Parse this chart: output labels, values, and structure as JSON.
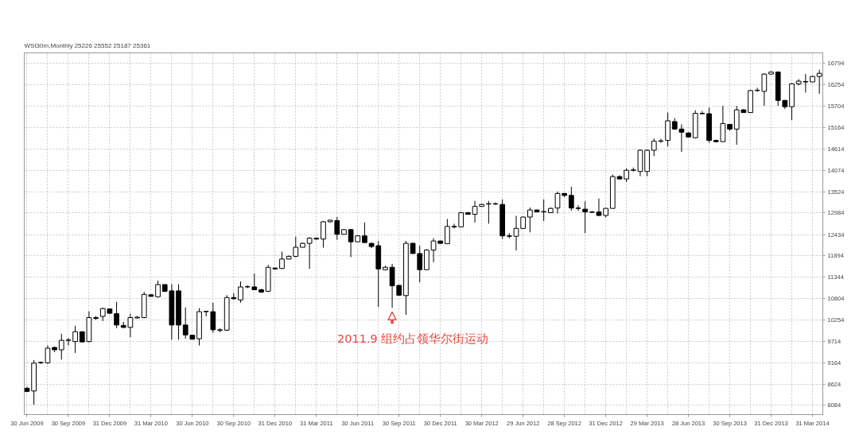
{
  "chart_data": {
    "type": "candlestick",
    "title": "WSt30m,Monthly 25226 25552 25187 25361",
    "categories": [
      "30 Jun 2009",
      null,
      null,
      null,
      null,
      null,
      "30 Sep 2009",
      null,
      null,
      null,
      null,
      null,
      "31 Dec 2009",
      null,
      null,
      null,
      null,
      null,
      "31 Mar 2010",
      null,
      null,
      null,
      null,
      null,
      "30 Jun 2010",
      null,
      null,
      null,
      null,
      null,
      "30 Sep 2010",
      null,
      null,
      null,
      null,
      null,
      "31 Dec 2010",
      null,
      null,
      null,
      null,
      null,
      "31 Mar 2011",
      null,
      null,
      null,
      null,
      null,
      "30 Jun 2011",
      null,
      null,
      null,
      null,
      null,
      "30 Sep 2011",
      null,
      null,
      null,
      null,
      null,
      "30 Dec 2011",
      null,
      null,
      null,
      null,
      null,
      "30 Mar 2012",
      null,
      null,
      null,
      null,
      null,
      "29 Jun 2012",
      null,
      null,
      null,
      null,
      null,
      "28 Sep 2012",
      null,
      null,
      null,
      null,
      null,
      "31 Dec 2012",
      null,
      null,
      null,
      null,
      null,
      "29 Mar 2013",
      null,
      null,
      null,
      null,
      null,
      "28 Jun 2013",
      null,
      null,
      null,
      null,
      null,
      "30 Sep 2013",
      null,
      null,
      null,
      null,
      null,
      "31 Dec 2013",
      null,
      null,
      null,
      null,
      null,
      "31 Mar 2014",
      null
    ],
    "ohlc": [
      [
        8520,
        8560,
        8420,
        8440
      ],
      [
        8450,
        9240,
        8100,
        9160
      ],
      [
        9170,
        9200,
        9140,
        9180
      ],
      [
        9170,
        9610,
        9140,
        9540
      ],
      [
        9560,
        9580,
        9440,
        9500
      ],
      [
        9500,
        9910,
        9250,
        9740
      ],
      [
        9740,
        9800,
        9610,
        9750
      ],
      [
        9710,
        10110,
        9420,
        9960
      ],
      [
        9960,
        9970,
        9690,
        9700
      ],
      [
        9710,
        10480,
        9690,
        10320
      ],
      [
        10300,
        10360,
        10260,
        10320
      ],
      [
        10350,
        10570,
        10230,
        10550
      ],
      [
        10540,
        10550,
        10420,
        10430
      ],
      [
        10420,
        10720,
        10050,
        10130
      ],
      [
        10120,
        10210,
        10050,
        10070
      ],
      [
        10070,
        10420,
        9820,
        10320
      ],
      [
        10310,
        10360,
        10300,
        10330
      ],
      [
        10320,
        10970,
        10300,
        10910
      ],
      [
        10900,
        10910,
        10850,
        10860
      ],
      [
        10850,
        11260,
        10830,
        11160
      ],
      [
        11160,
        11170,
        10970,
        10990
      ],
      [
        11000,
        11170,
        9760,
        10130
      ],
      [
        11000,
        11170,
        9760,
        10130
      ],
      [
        10130,
        10580,
        9780,
        9880
      ],
      [
        9870,
        9880,
        9760,
        9770
      ],
      [
        9780,
        10560,
        9610,
        10470
      ],
      [
        10470,
        10480,
        10350,
        10480
      ],
      [
        10470,
        10700,
        9930,
        10010
      ],
      [
        9990,
        10050,
        9950,
        10010
      ],
      [
        10000,
        10890,
        9980,
        10830
      ],
      [
        10830,
        10940,
        10780,
        10800
      ],
      [
        10770,
        11240,
        10700,
        11100
      ],
      [
        11100,
        11140,
        11070,
        11110
      ],
      [
        11100,
        11440,
        11020,
        11030
      ],
      [
        11030,
        11050,
        10950,
        10970
      ],
      [
        10990,
        11660,
        10970,
        11600
      ],
      [
        11580,
        11600,
        11540,
        11560
      ],
      [
        11570,
        12000,
        11560,
        11810
      ],
      [
        11810,
        11900,
        11800,
        11880
      ],
      [
        11880,
        12380,
        11860,
        12110
      ],
      [
        12110,
        12230,
        12110,
        12210
      ],
      [
        12210,
        12370,
        11560,
        12340
      ],
      [
        12340,
        12360,
        12300,
        12320
      ],
      [
        12320,
        12780,
        12100,
        12760
      ],
      [
        12760,
        12810,
        12740,
        12800
      ],
      [
        12790,
        12880,
        12300,
        12440
      ],
      [
        12440,
        12570,
        12440,
        12560
      ],
      [
        12560,
        12570,
        11860,
        12250
      ],
      [
        12250,
        12420,
        12250,
        12400
      ],
      [
        12400,
        12740,
        12230,
        12230
      ],
      [
        12210,
        12230,
        12090,
        12130
      ],
      [
        12150,
        12270,
        10590,
        11560
      ],
      [
        11540,
        11640,
        11520,
        11600
      ],
      [
        11600,
        11690,
        10570,
        11130
      ],
      [
        11140,
        11150,
        10880,
        10890
      ],
      [
        10880,
        12270,
        10390,
        12210
      ],
      [
        12210,
        12230,
        11950,
        11950
      ],
      [
        11950,
        12150,
        11220,
        11540
      ],
      [
        11540,
        12060,
        11540,
        12040
      ],
      [
        12040,
        12340,
        11730,
        12270
      ],
      [
        12270,
        12280,
        12200,
        12210
      ],
      [
        12200,
        12830,
        12200,
        12640
      ],
      [
        12640,
        12710,
        12590,
        12630
      ],
      [
        12630,
        13010,
        12630,
        12990
      ],
      [
        12990,
        13010,
        12940,
        12950
      ],
      [
        12950,
        13290,
        12740,
        13150
      ],
      [
        13150,
        13220,
        13150,
        13200
      ],
      [
        13210,
        13290,
        12710,
        13220
      ],
      [
        13220,
        13250,
        13190,
        13210
      ],
      [
        13200,
        13330,
        12320,
        12400
      ],
      [
        12400,
        12470,
        12340,
        12390
      ],
      [
        12390,
        12910,
        12030,
        12590
      ],
      [
        12590,
        12890,
        12590,
        12880
      ],
      [
        12880,
        13120,
        12490,
        13060
      ],
      [
        13060,
        13070,
        13010,
        13010
      ],
      [
        13010,
        13330,
        12780,
        13020
      ],
      [
        12990,
        13120,
        12990,
        13100
      ],
      [
        13110,
        13530,
        12970,
        13480
      ],
      [
        13480,
        13490,
        13390,
        13430
      ],
      [
        13430,
        13650,
        13040,
        13110
      ],
      [
        13110,
        13180,
        13040,
        13100
      ],
      [
        13080,
        13280,
        12470,
        13010
      ],
      [
        13010,
        13030,
        12980,
        13000
      ],
      [
        13010,
        13350,
        12910,
        12920
      ],
      [
        12920,
        13110,
        12870,
        13100
      ],
      [
        13100,
        13960,
        13100,
        13910
      ],
      [
        13910,
        13940,
        13840,
        13850
      ],
      [
        13850,
        14120,
        13770,
        14070
      ],
      [
        14070,
        14140,
        14040,
        14080
      ],
      [
        14040,
        14600,
        13920,
        14580
      ],
      [
        14040,
        14600,
        13920,
        14580
      ],
      [
        14580,
        14880,
        14430,
        14810
      ],
      [
        14810,
        14870,
        14770,
        14820
      ],
      [
        14830,
        15540,
        14680,
        15330
      ],
      [
        15310,
        15400,
        15100,
        15120
      ],
      [
        15120,
        15240,
        14540,
        15040
      ],
      [
        15020,
        15040,
        14900,
        14920
      ],
      [
        14900,
        15600,
        14880,
        15520
      ],
      [
        15520,
        15580,
        15500,
        15510
      ],
      [
        15510,
        15670,
        14770,
        14830
      ],
      [
        14830,
        14850,
        14780,
        14800
      ],
      [
        14800,
        15710,
        14790,
        15260
      ],
      [
        15240,
        15250,
        15080,
        15120
      ],
      [
        15120,
        15710,
        14720,
        15610
      ],
      [
        15610,
        15630,
        15540,
        15540
      ],
      [
        15540,
        16120,
        15530,
        16100
      ],
      [
        16100,
        16170,
        16070,
        16110
      ],
      [
        16080,
        16540,
        15710,
        16520
      ],
      [
        16520,
        16590,
        16520,
        16570
      ],
      [
        16570,
        16590,
        15710,
        15850
      ],
      [
        15850,
        15860,
        15630,
        15690
      ],
      [
        15690,
        16290,
        15350,
        16270
      ],
      [
        16270,
        16390,
        16230,
        16340
      ],
      [
        16320,
        16520,
        16050,
        16330
      ],
      [
        16320,
        16480,
        16320,
        16460
      ],
      [
        16460,
        16630,
        16020,
        16540
      ]
    ],
    "color": "#000000",
    "colors": [
      "#000000",
      "#ffffff",
      "#ffffff",
      "#ffffff",
      "#000000",
      "#ffffff",
      "#ffffff",
      "#ffffff",
      "#000000",
      "#ffffff",
      "#ffffff",
      "#ffffff",
      "#000000",
      "#000000",
      "#000000",
      "#ffffff",
      "#ffffff",
      "#ffffff",
      "#000000",
      "#ffffff",
      "#000000",
      "#000000",
      "#000000",
      "#000000",
      "#000000",
      "#ffffff",
      "#ffffff",
      "#000000",
      "#ffffff",
      "#ffffff",
      "#000000",
      "#ffffff",
      "#ffffff",
      "#000000",
      "#000000",
      "#ffffff",
      "#000000",
      "#ffffff",
      "#ffffff",
      "#ffffff",
      "#ffffff",
      "#ffffff",
      "#000000",
      "#ffffff",
      "#ffffff",
      "#000000",
      "#ffffff",
      "#000000",
      "#ffffff",
      "#000000",
      "#000000",
      "#000000",
      "#ffffff",
      "#000000",
      "#000000",
      "#ffffff",
      "#000000",
      "#000000",
      "#ffffff",
      "#ffffff",
      "#000000",
      "#ffffff",
      "#000000",
      "#ffffff",
      "#000000",
      "#ffffff",
      "#ffffff",
      "#ffffff",
      "#000000",
      "#000000",
      "#000000",
      "#ffffff",
      "#ffffff",
      "#ffffff",
      "#000000",
      "#ffffff",
      "#ffffff",
      "#ffffff",
      "#000000",
      "#000000",
      "#000000",
      "#000000",
      "#000000",
      "#000000",
      "#ffffff",
      "#ffffff",
      "#000000",
      "#ffffff",
      "#ffffff",
      "#ffffff",
      "#ffffff",
      "#ffffff",
      "#ffffff",
      "#ffffff",
      "#000000",
      "#000000",
      "#000000",
      "#ffffff",
      "#000000",
      "#000000",
      "#000000",
      "#ffffff",
      "#000000",
      "#ffffff",
      "#000000",
      "#ffffff",
      "#ffffff",
      "#ffffff",
      "#ffffff",
      "#000000",
      "#000000",
      "#ffffff",
      "#ffffff",
      "#ffffff",
      "#ffffff",
      "#ffffff"
    ],
    "ylim": [
      7850,
      17060
    ],
    "yticks": [
      8084,
      8624,
      9164,
      9714,
      10254,
      10804,
      11344,
      11894,
      12434,
      12984,
      13524,
      14074,
      14614,
      15164,
      15704,
      16254,
      16794
    ],
    "grid": true,
    "annotations": [
      "2011.9  组约占领华尔街运动"
    ]
  }
}
